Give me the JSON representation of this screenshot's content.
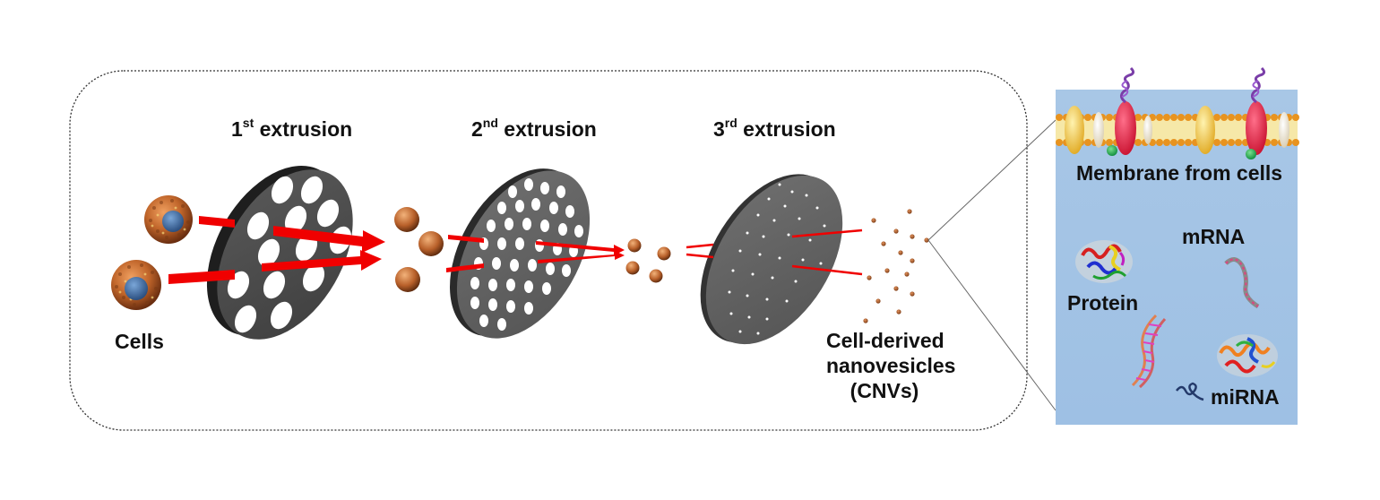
{
  "extrusions": [
    {
      "ordinal": "1",
      "suffix": "st",
      "text": " extrusion"
    },
    {
      "ordinal": "2",
      "suffix": "nd",
      "text": " extrusion"
    },
    {
      "ordinal": "3",
      "suffix": "rd",
      "text": " extrusion"
    }
  ],
  "labels": {
    "cells": "Cells",
    "cnv_line1": "Cell-derived",
    "cnv_line2": "nanovesicles",
    "cnv_line3": "(CNVs)"
  },
  "inset": {
    "membrane": "Membrane from cells",
    "mrna": "mRNA",
    "protein": "Protein",
    "mirna": "miRNA"
  },
  "colors": {
    "arrow": "#f00000",
    "membrane_filter": "#4d4d4d",
    "inset_background": "#a9c8e8",
    "cell_body": "#c0652a",
    "nucleus": "#3f6fa8"
  },
  "icons": [
    "cell-icon",
    "filter-disc-icon",
    "arrow-icon",
    "vesicle-icon",
    "membrane-protein-icon",
    "protein-structure-icon",
    "rna-strand-icon"
  ]
}
